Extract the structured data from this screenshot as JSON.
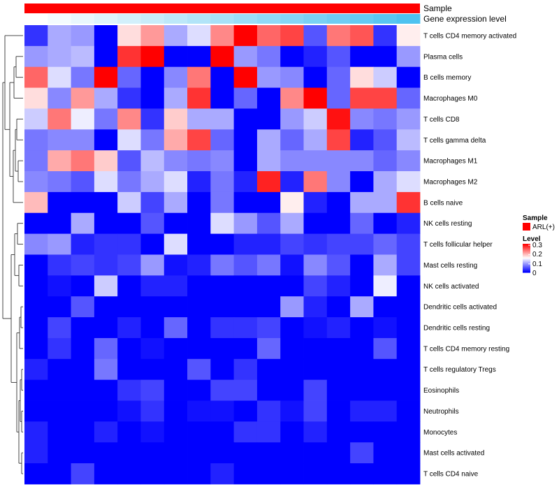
{
  "chart_data": {
    "type": "heatmap",
    "title": "",
    "annotations": [
      {
        "name": "Sample",
        "legend_entries": [
          "ARL(+)"
        ]
      },
      {
        "name": "Gene expression level"
      }
    ],
    "row_labels": [
      "T cells CD4 memory activated",
      "Plasma cells",
      "B cells memory",
      "Macrophages M0",
      "T cells CD8",
      "T cells gamma delta",
      "Macrophages M1",
      "Macrophages M2",
      "B cells naive",
      "NK cells resting",
      "T cells follicular helper",
      "Mast cells resting",
      "NK cells activated",
      "Dendritic cells activated",
      "Dendritic cells resting",
      "T cells CD4 memory resting",
      "T cells regulatory  Tregs",
      "Eosinophils",
      "Neutrophils",
      "Monocytes",
      "Mast cells activated",
      "T cells CD4 naive"
    ],
    "n_columns": 17,
    "values": [
      [
        0.03,
        0.1,
        0.09,
        0.0,
        0.17,
        0.21,
        0.1,
        0.13,
        0.22,
        0.3,
        0.24,
        0.26,
        0.05,
        0.23,
        0.25,
        0.03,
        0.16
      ],
      [
        0.09,
        0.1,
        0.11,
        0.0,
        0.27,
        0.3,
        0.0,
        0.0,
        0.3,
        0.09,
        0.07,
        0.0,
        0.02,
        0.05,
        0.0,
        0.0,
        0.09
      ],
      [
        0.24,
        0.13,
        0.07,
        0.3,
        0.06,
        0.0,
        0.08,
        0.23,
        0.0,
        0.3,
        0.09,
        0.08,
        0.0,
        0.06,
        0.17,
        0.12,
        0.0
      ],
      [
        0.17,
        0.08,
        0.21,
        0.1,
        0.03,
        0.0,
        0.1,
        0.27,
        0.0,
        0.06,
        0.0,
        0.22,
        0.3,
        0.06,
        0.26,
        0.26,
        0.06
      ],
      [
        0.12,
        0.23,
        0.14,
        0.07,
        0.22,
        0.03,
        0.18,
        0.1,
        0.1,
        0.0,
        0.0,
        0.09,
        0.12,
        0.29,
        0.08,
        0.07,
        0.09
      ],
      [
        0.07,
        0.08,
        0.08,
        0.0,
        0.13,
        0.07,
        0.2,
        0.26,
        0.06,
        0.0,
        0.1,
        0.06,
        0.1,
        0.26,
        0.02,
        0.05,
        0.11
      ],
      [
        0.07,
        0.2,
        0.23,
        0.18,
        0.05,
        0.11,
        0.08,
        0.07,
        0.08,
        0.0,
        0.1,
        0.08,
        0.08,
        0.08,
        0.08,
        0.06,
        0.08
      ],
      [
        0.08,
        0.07,
        0.05,
        0.13,
        0.07,
        0.1,
        0.13,
        0.02,
        0.07,
        0.02,
        0.28,
        0.02,
        0.23,
        0.08,
        0.0,
        0.1,
        0.13
      ],
      [
        0.19,
        0.0,
        0.0,
        0.0,
        0.12,
        0.04,
        0.1,
        0.0,
        0.07,
        0.0,
        0.0,
        0.16,
        0.02,
        0.0,
        0.1,
        0.1,
        0.27
      ],
      [
        0.0,
        0.0,
        0.1,
        0.0,
        0.0,
        0.05,
        0.0,
        0.0,
        0.13,
        0.09,
        0.05,
        0.1,
        0.0,
        0.0,
        0.06,
        0.0,
        0.02
      ],
      [
        0.08,
        0.09,
        0.02,
        0.03,
        0.03,
        0.0,
        0.13,
        0.0,
        0.0,
        0.02,
        0.02,
        0.04,
        0.03,
        0.04,
        0.04,
        0.06,
        0.04
      ],
      [
        0.0,
        0.03,
        0.04,
        0.03,
        0.04,
        0.09,
        0.01,
        0.02,
        0.07,
        0.05,
        0.07,
        0.01,
        0.08,
        0.05,
        0.0,
        0.1,
        0.04
      ],
      [
        0.0,
        0.01,
        0.0,
        0.12,
        0.0,
        0.02,
        0.02,
        0.0,
        0.0,
        0.0,
        0.0,
        0.0,
        0.04,
        0.02,
        0.0,
        0.14,
        0.0
      ],
      [
        0.0,
        0.0,
        0.05,
        0.0,
        0.0,
        0.0,
        0.0,
        0.0,
        0.0,
        0.0,
        0.0,
        0.09,
        0.02,
        0.0,
        0.1,
        0.0,
        0.0
      ],
      [
        0.0,
        0.04,
        0.0,
        0.0,
        0.02,
        0.0,
        0.06,
        0.0,
        0.03,
        0.03,
        0.04,
        0.0,
        0.01,
        0.02,
        0.0,
        0.01,
        0.0
      ],
      [
        0.0,
        0.03,
        0.0,
        0.06,
        0.0,
        0.01,
        0.0,
        0.0,
        0.0,
        0.0,
        0.06,
        0.0,
        0.0,
        0.0,
        0.0,
        0.05,
        0.0
      ],
      [
        0.02,
        0.0,
        0.0,
        0.07,
        0.0,
        0.0,
        0.0,
        0.05,
        0.0,
        0.03,
        0.0,
        0.0,
        0.0,
        0.0,
        0.0,
        0.0,
        0.0
      ],
      [
        0.0,
        0.0,
        0.0,
        0.0,
        0.03,
        0.04,
        0.0,
        0.0,
        0.04,
        0.04,
        0.0,
        0.0,
        0.04,
        0.0,
        0.0,
        0.0,
        0.0
      ],
      [
        0.0,
        0.0,
        0.0,
        0.0,
        0.01,
        0.03,
        0.0,
        0.01,
        0.01,
        0.0,
        0.03,
        0.01,
        0.04,
        0.0,
        0.02,
        0.02,
        0.0
      ],
      [
        0.02,
        0.0,
        0.0,
        0.02,
        0.0,
        0.01,
        0.0,
        0.0,
        0.0,
        0.03,
        0.03,
        0.0,
        0.02,
        0.0,
        0.0,
        0.0,
        0.0
      ],
      [
        0.02,
        0.0,
        0.0,
        0.0,
        0.0,
        0.0,
        0.0,
        0.0,
        0.0,
        0.0,
        0.0,
        0.0,
        0.0,
        0.0,
        0.04,
        0.0,
        0.0
      ],
      [
        0.0,
        0.0,
        0.04,
        0.0,
        0.0,
        0.0,
        0.0,
        0.0,
        0.02,
        0.0,
        0.0,
        0.0,
        0.0,
        0.0,
        0.0,
        0.0,
        0.0
      ]
    ],
    "gene_expression_level": [
      0.0,
      0.0625,
      0.125,
      0.1875,
      0.25,
      0.3125,
      0.375,
      0.4375,
      0.5,
      0.5625,
      0.625,
      0.6875,
      0.75,
      0.8125,
      0.875,
      0.9375,
      1.0
    ],
    "color_scale": {
      "low": "#0000ff",
      "mid": "#ffffff",
      "high": "#ff0000",
      "range": [
        0,
        0.3
      ],
      "midpoint": 0.15
    },
    "legend": {
      "sample_title": "Sample",
      "sample_entry": "ARL(+)",
      "sample_color": "#ff0000",
      "level_title": "Level",
      "level_ticks": [
        "0.3",
        "0.2",
        "0.1",
        "0"
      ],
      "placement": "right"
    },
    "gene_expression_colors": {
      "low": "#ffffff",
      "high": "#4ec2f0"
    },
    "dendrogram": "rows"
  }
}
